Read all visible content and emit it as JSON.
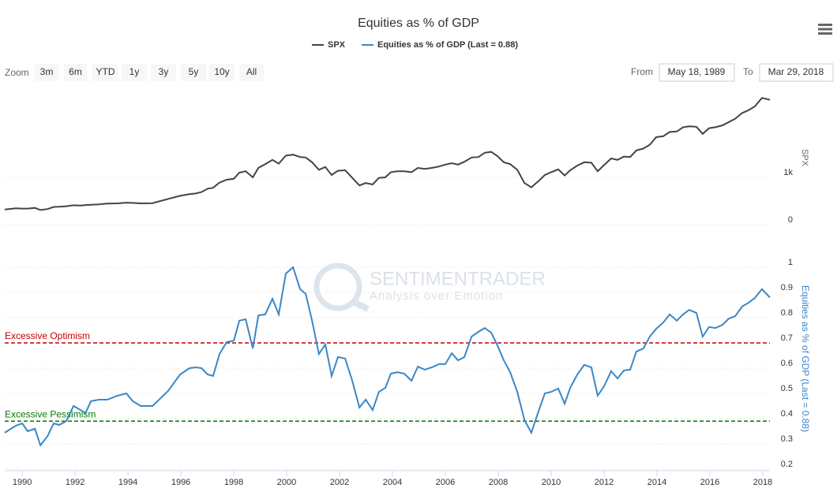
{
  "chart_data": {
    "type": "line",
    "title": "Equities as % of GDP",
    "x": [
      1989.34,
      1989.76,
      1990.0,
      1990.21,
      1990.48,
      1990.69,
      1990.96,
      1991.19,
      1991.4,
      1991.67,
      1991.94,
      1992.21,
      1992.39,
      1992.6,
      1992.9,
      1993.22,
      1993.58,
      1993.94,
      1994.18,
      1994.48,
      1994.93,
      1995.52,
      1995.97,
      1996.33,
      1996.57,
      1996.78,
      1997.01,
      1997.22,
      1997.46,
      1997.73,
      1998.0,
      1998.21,
      1998.45,
      1998.72,
      1998.93,
      1999.19,
      1999.46,
      1999.7,
      1999.97,
      2000.24,
      2000.51,
      2000.72,
      2000.96,
      2001.22,
      2001.46,
      2001.7,
      2001.94,
      2002.21,
      2002.48,
      2002.75,
      2002.99,
      2003.25,
      2003.49,
      2003.73,
      2003.94,
      2004.18,
      2004.45,
      2004.72,
      2004.96,
      2005.22,
      2005.49,
      2005.76,
      2006.0,
      2006.24,
      2006.48,
      2006.72,
      2006.99,
      2007.25,
      2007.49,
      2007.73,
      2007.97,
      2008.21,
      2008.45,
      2008.72,
      2008.99,
      2009.25,
      2009.52,
      2009.76,
      2010.0,
      2010.27,
      2010.51,
      2010.72,
      2010.99,
      2011.25,
      2011.52,
      2011.76,
      2012.0,
      2012.27,
      2012.51,
      2012.75,
      2012.99,
      2013.22,
      2013.49,
      2013.73,
      2013.97,
      2014.24,
      2014.48,
      2014.75,
      2014.99,
      2015.22,
      2015.49,
      2015.73,
      2015.97,
      2016.21,
      2016.48,
      2016.72,
      2016.96,
      2017.22,
      2017.46,
      2017.7,
      2017.97,
      2018.27
    ],
    "series": [
      {
        "name": "SPX",
        "color": "#434348",
        "axis": "y",
        "values": [
          320,
          345,
          340,
          340,
          355,
          310,
          330,
          375,
          380,
          390,
          410,
          405,
          415,
          420,
          430,
          445,
          450,
          465,
          460,
          450,
          455,
          545,
          610,
          645,
          660,
          690,
          760,
          780,
          890,
          950,
          970,
          1100,
          1130,
          1000,
          1200,
          1280,
          1370,
          1290,
          1460,
          1480,
          1430,
          1420,
          1320,
          1160,
          1220,
          1050,
          1140,
          1150,
          990,
          830,
          880,
          850,
          990,
          1000,
          1110,
          1130,
          1130,
          1110,
          1200,
          1180,
          1200,
          1230,
          1270,
          1300,
          1270,
          1330,
          1420,
          1430,
          1520,
          1540,
          1450,
          1320,
          1280,
          1160,
          880,
          790,
          920,
          1050,
          1110,
          1170,
          1040,
          1150,
          1250,
          1320,
          1310,
          1130,
          1260,
          1400,
          1370,
          1440,
          1430,
          1570,
          1610,
          1690,
          1850,
          1870,
          1960,
          1970,
          2060,
          2080,
          2070,
          1920,
          2040,
          2060,
          2100,
          2170,
          2240,
          2360,
          2420,
          2500,
          2680,
          2640
        ]
      },
      {
        "name": "Equities as % of GDP (Last = 0.88)",
        "color": "#3a87c8",
        "axis": "y2",
        "values": [
          0.344,
          0.372,
          0.381,
          0.35,
          0.36,
          0.294,
          0.331,
          0.381,
          0.375,
          0.39,
          0.45,
          0.434,
          0.422,
          0.469,
          0.475,
          0.475,
          0.49,
          0.5,
          0.469,
          0.45,
          0.45,
          0.51,
          0.575,
          0.6,
          0.603,
          0.6,
          0.575,
          0.569,
          0.656,
          0.703,
          0.709,
          0.788,
          0.794,
          0.678,
          0.809,
          0.813,
          0.875,
          0.813,
          0.975,
          1.0,
          0.913,
          0.894,
          0.788,
          0.656,
          0.694,
          0.569,
          0.644,
          0.638,
          0.55,
          0.444,
          0.475,
          0.434,
          0.506,
          0.522,
          0.578,
          0.584,
          0.578,
          0.55,
          0.606,
          0.594,
          0.603,
          0.616,
          0.616,
          0.659,
          0.631,
          0.644,
          0.725,
          0.744,
          0.759,
          0.741,
          0.69,
          0.631,
          0.584,
          0.506,
          0.394,
          0.344,
          0.428,
          0.5,
          0.506,
          0.519,
          0.459,
          0.522,
          0.575,
          0.613,
          0.603,
          0.491,
          0.528,
          0.588,
          0.559,
          0.591,
          0.594,
          0.666,
          0.678,
          0.725,
          0.756,
          0.781,
          0.813,
          0.788,
          0.813,
          0.831,
          0.819,
          0.725,
          0.763,
          0.759,
          0.772,
          0.797,
          0.806,
          0.844,
          0.859,
          0.878,
          0.913,
          0.88
        ]
      }
    ],
    "xlim": [
      1989.34,
      2018.27
    ],
    "xticks": [
      1990,
      1992,
      1994,
      1996,
      1998,
      2000,
      2002,
      2004,
      2006,
      2008,
      2010,
      2012,
      2014,
      2016,
      2018
    ],
    "ylabel": "SPX",
    "ylim": [
      0,
      3000
    ],
    "yticks": [
      0,
      {
        "value": 1000,
        "label": "1k"
      }
    ],
    "y2label": "Equities as % of GDP (Last = 0.88)",
    "y2lim": [
      0.2,
      1
    ],
    "y2ticks": [
      0.2,
      0.3,
      0.4,
      0.5,
      0.6,
      0.7,
      0.8,
      0.9,
      1
    ],
    "grid": true,
    "plot_lines": [
      {
        "label": "Excessive Optimism",
        "value": 0.7,
        "color": "#c00000",
        "axis": "y2"
      },
      {
        "label": "Excessive Pessimism",
        "value": 0.39,
        "color": "#007a00",
        "axis": "y2"
      }
    ]
  },
  "range_selector": {
    "zoom_label": "Zoom",
    "buttons": [
      "3m",
      "6m",
      "YTD",
      "1y",
      "3y",
      "5y",
      "10y",
      "All"
    ],
    "from_label": "From",
    "from": "May 18, 1989",
    "to_label": "To",
    "to": "Mar 29, 2018"
  },
  "watermark": {
    "title": "SENTIMENTRADER",
    "subtitle": "Analysis over Emotion"
  }
}
